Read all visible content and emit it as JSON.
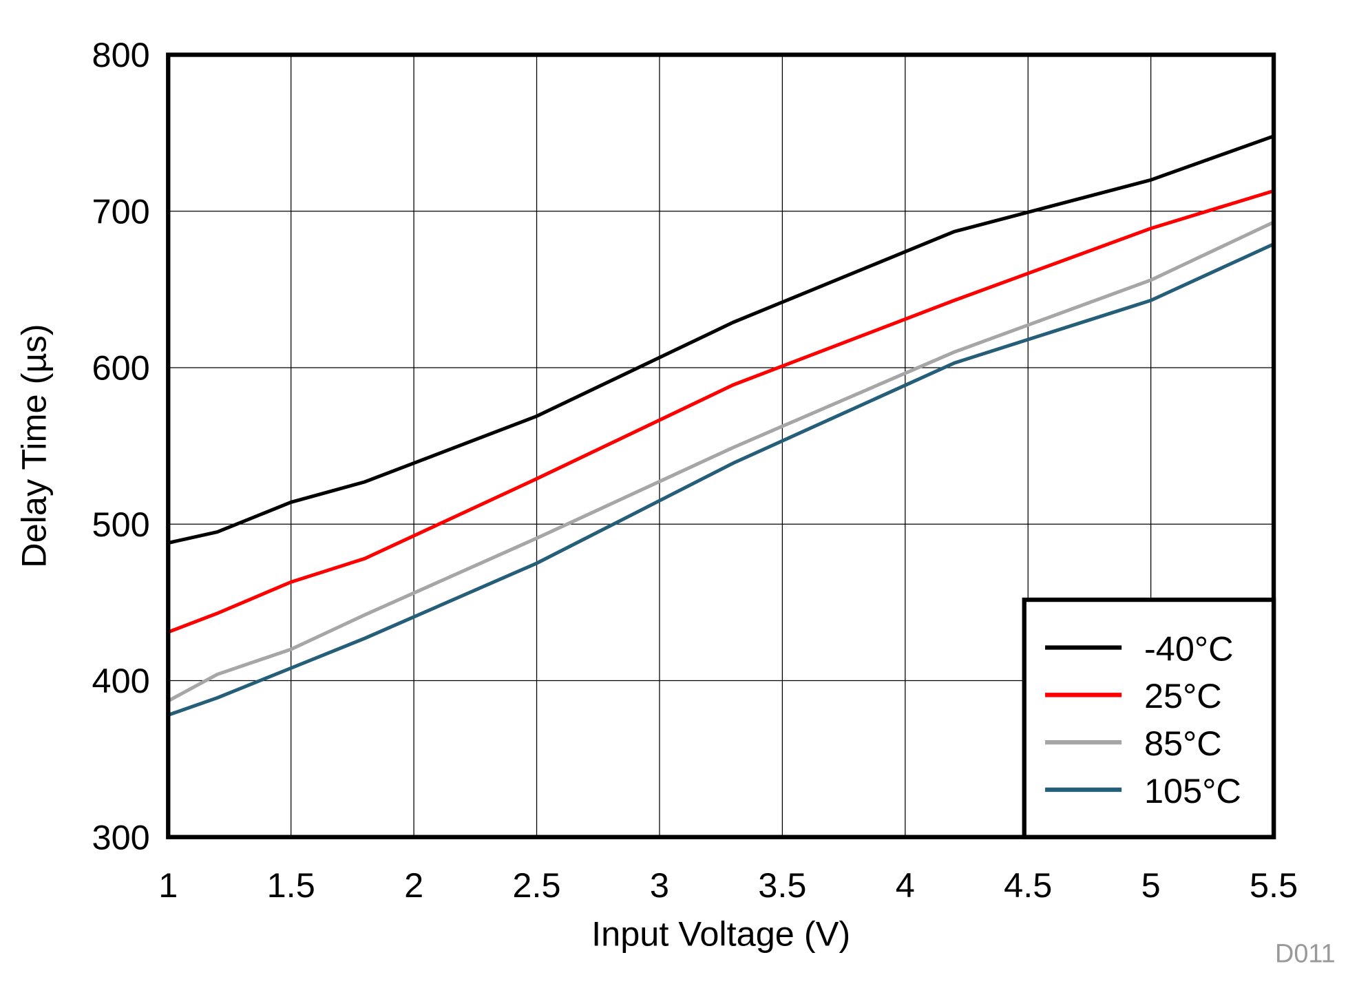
{
  "chart_data": {
    "type": "line",
    "title": "",
    "xlabel": "Input Voltage (V)",
    "ylabel": "Delay Time (µs)",
    "xlim": [
      1,
      5.5
    ],
    "ylim": [
      300,
      800
    ],
    "xticks": [
      "1",
      "1.5",
      "2",
      "2.5",
      "3",
      "3.5",
      "4",
      "4.5",
      "5",
      "5.5"
    ],
    "yticks": [
      "300",
      "400",
      "500",
      "600",
      "700",
      "800"
    ],
    "grid": true,
    "legend_position": "bottom-right",
    "x": [
      1,
      1.2,
      1.5,
      1.8,
      2.5,
      3.3,
      4.2,
      5,
      5.5
    ],
    "series": [
      {
        "name": "-40°C",
        "color": "#000000",
        "values": [
          488,
          495,
          514,
          527,
          569,
          629,
          687,
          720,
          748
        ]
      },
      {
        "name": "25°C",
        "color": "#ff0000",
        "values": [
          431,
          443,
          463,
          478,
          529,
          589,
          643,
          689,
          713
        ]
      },
      {
        "name": "85°C",
        "color": "#a6a6a6",
        "values": [
          387,
          404,
          420,
          442,
          491,
          549,
          610,
          656,
          693
        ]
      },
      {
        "name": "105°C",
        "color": "#255e78",
        "values": [
          378,
          389,
          408,
          427,
          475,
          539,
          603,
          643,
          679
        ]
      }
    ],
    "figure_id": "D011"
  }
}
